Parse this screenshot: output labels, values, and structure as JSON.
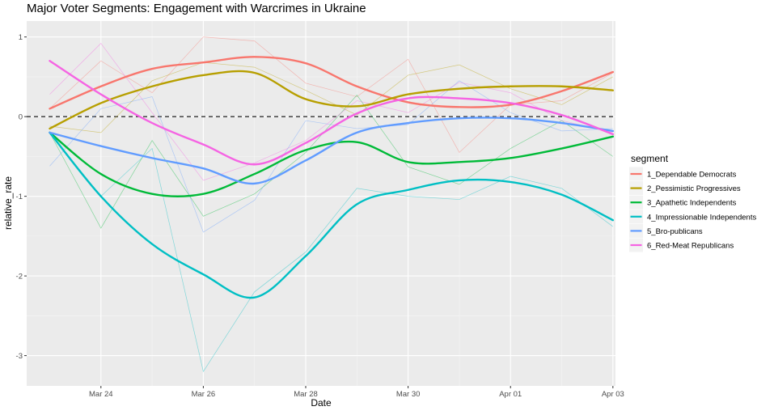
{
  "chart_data": {
    "type": "line",
    "title": "Major Voter Segments: Engagement with Warcrimes in Ukraine",
    "xlabel": "Date",
    "ylabel": "relative_rate",
    "x_tick_labels": [
      "Mar 24",
      "Mar 26",
      "Mar 28",
      "Mar 30",
      "Apr 01",
      "Apr 03"
    ],
    "x_tick_days": [
      24,
      26,
      28,
      30,
      32,
      34
    ],
    "y_ticks": [
      1,
      0,
      -1,
      -2,
      -3
    ],
    "xlim_days": [
      22.55,
      34.05
    ],
    "ylim": [
      -3.38,
      1.2
    ],
    "x": [
      23,
      24,
      25,
      26,
      27,
      28,
      29,
      30,
      31,
      32,
      33,
      34
    ],
    "reference_line_y": 0,
    "legend_title": "segment",
    "legend_position": "right",
    "grid": true,
    "series": [
      {
        "name": "1_Dependable Democrats",
        "color": "#F8766D",
        "values": [
          0.1,
          0.7,
          0.3,
          1.0,
          0.95,
          0.42,
          0.25,
          0.72,
          -0.45,
          0.15,
          0.2,
          0.55
        ],
        "smooth": [
          0.1,
          0.38,
          0.6,
          0.68,
          0.75,
          0.67,
          0.38,
          0.18,
          0.12,
          0.15,
          0.32,
          0.56
        ]
      },
      {
        "name": "2_Pessimistic Progressives",
        "color": "#B79F00",
        "values": [
          -0.12,
          -0.2,
          0.45,
          0.68,
          0.62,
          0.33,
          0.02,
          0.52,
          0.65,
          0.35,
          0.15,
          0.5
        ],
        "smooth": [
          -0.15,
          0.17,
          0.38,
          0.52,
          0.55,
          0.22,
          0.13,
          0.28,
          0.35,
          0.38,
          0.38,
          0.33
        ]
      },
      {
        "name": "3_Apathetic Independents",
        "color": "#00BA38",
        "values": [
          -0.2,
          -1.4,
          -0.3,
          -1.25,
          -0.97,
          -0.45,
          0.27,
          -0.63,
          -0.85,
          -0.4,
          -0.05,
          -0.5
        ],
        "smooth": [
          -0.2,
          -0.72,
          -0.97,
          -0.97,
          -0.72,
          -0.42,
          -0.32,
          -0.57,
          -0.57,
          -0.52,
          -0.4,
          -0.25
        ]
      },
      {
        "name": "4_Impressionable Independents",
        "color": "#00BFC4",
        "values": [
          -0.2,
          -1.0,
          -0.4,
          -3.2,
          -2.2,
          -1.7,
          -0.9,
          -1.0,
          -1.04,
          -0.75,
          -0.9,
          -1.38
        ],
        "smooth": [
          -0.2,
          -1.0,
          -1.6,
          -1.98,
          -2.27,
          -1.75,
          -1.1,
          -0.92,
          -0.8,
          -0.82,
          -0.98,
          -1.3
        ]
      },
      {
        "name": "5_Bro-publicans",
        "color": "#619CFF",
        "values": [
          -0.62,
          0.1,
          0.25,
          -1.45,
          -1.05,
          -0.05,
          -0.15,
          -0.1,
          0.45,
          0.05,
          -0.18,
          -0.15
        ],
        "smooth": [
          -0.2,
          -0.37,
          -0.52,
          -0.65,
          -0.84,
          -0.55,
          -0.2,
          -0.08,
          -0.02,
          -0.02,
          -0.08,
          -0.18
        ]
      },
      {
        "name": "6_Red-Meat Republicans",
        "color": "#F564E3",
        "values": [
          0.28,
          0.92,
          0.05,
          -0.8,
          -0.58,
          -0.3,
          0.2,
          0.05,
          0.43,
          0.3,
          -0.05,
          -0.2
        ],
        "smooth": [
          0.7,
          0.28,
          -0.08,
          -0.35,
          -0.6,
          -0.33,
          0.04,
          0.23,
          0.23,
          0.17,
          0.02,
          -0.22
        ]
      }
    ]
  }
}
